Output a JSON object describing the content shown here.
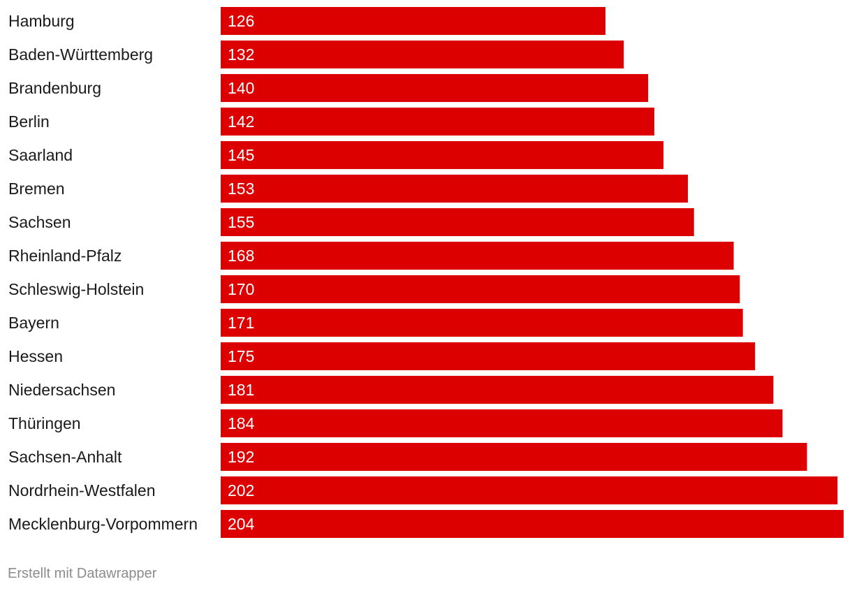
{
  "chart_data": {
    "type": "bar",
    "orientation": "horizontal",
    "categories": [
      "Hamburg",
      "Baden-Württemberg",
      "Brandenburg",
      "Berlin",
      "Saarland",
      "Bremen",
      "Sachsen",
      "Rheinland-Pfalz",
      "Schleswig-Holstein",
      "Bayern",
      "Hessen",
      "Niedersachsen",
      "Thüringen",
      "Sachsen-Anhalt",
      "Nordrhein-Westfalen",
      "Mecklenburg-Vorpommern"
    ],
    "values": [
      126,
      132,
      140,
      142,
      145,
      153,
      155,
      168,
      170,
      171,
      175,
      181,
      184,
      192,
      202,
      204
    ],
    "title": "",
    "xlabel": "",
    "ylabel": "",
    "xlim": [
      0,
      204
    ],
    "grid": false,
    "legend": "none",
    "colors": {
      "bar": "#dd0000",
      "value_label": "#ffffff",
      "category_label": "#1a1a1a"
    }
  },
  "footer": {
    "credit": "Erstellt mit Datawrapper"
  }
}
